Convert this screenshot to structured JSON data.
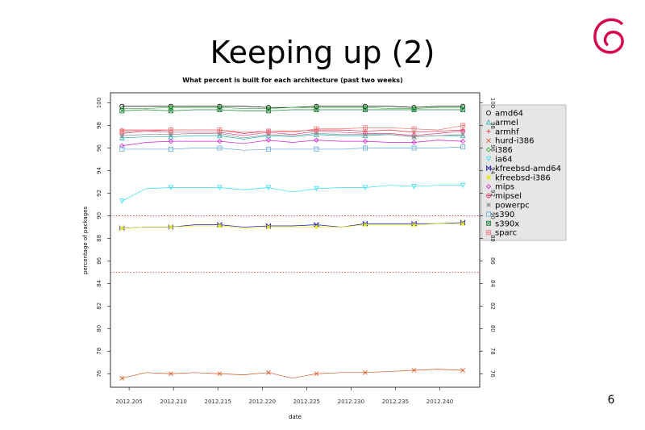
{
  "slide": {
    "title": "Keeping up (2)",
    "page_number": "6"
  },
  "chart_data": {
    "type": "line",
    "title": "What percent is built for each architecture (past two weeks)",
    "xlabel": "date",
    "ylabel": "percentage of packages",
    "x": [
      2012.2042,
      2012.2069,
      2012.2097,
      2012.2124,
      2012.2152,
      2012.2179,
      2012.2207,
      2012.2234,
      2012.2261,
      2012.2289,
      2012.2316,
      2012.2344,
      2012.2371,
      2012.2398,
      2012.2426
    ],
    "xlim": [
      2012.2029,
      2012.2445
    ],
    "xticks": [
      {
        "value": 2012.205,
        "label": "2012.205"
      },
      {
        "value": 2012.21,
        "label": "2012.210"
      },
      {
        "value": 2012.215,
        "label": "2012.215"
      },
      {
        "value": 2012.22,
        "label": "2012.220"
      },
      {
        "value": 2012.225,
        "label": "2012.225"
      },
      {
        "value": 2012.23,
        "label": "2012.230"
      },
      {
        "value": 2012.235,
        "label": "2012.235"
      },
      {
        "value": 2012.24,
        "label": "2012.240"
      }
    ],
    "ylim": [
      74.8,
      100.9
    ],
    "yticks": [
      76,
      78,
      80,
      82,
      84,
      86,
      88,
      90,
      92,
      94,
      96,
      98,
      100
    ],
    "hlines": [
      90,
      85
    ],
    "hline_color": "#e03030",
    "legend": "right",
    "series": [
      {
        "name": "amd64",
        "color": "#000000",
        "marker": "circle",
        "values": [
          99.7,
          99.7,
          99.7,
          99.7,
          99.7,
          99.7,
          99.6,
          99.6,
          99.7,
          99.7,
          99.7,
          99.7,
          99.6,
          99.7,
          99.7
        ]
      },
      {
        "name": "armel",
        "color": "#20b2aa",
        "marker": "triangle",
        "values": [
          96.9,
          97.0,
          97.0,
          97.1,
          97.1,
          96.8,
          97.1,
          97.0,
          97.2,
          97.1,
          97.1,
          97.2,
          97.0,
          97.1,
          97.1
        ]
      },
      {
        "name": "armhf",
        "color": "#e0303a",
        "marker": "plus",
        "values": [
          97.6,
          97.6,
          97.6,
          97.6,
          97.6,
          97.3,
          97.5,
          97.5,
          97.6,
          97.6,
          97.5,
          97.6,
          97.4,
          97.5,
          97.6
        ]
      },
      {
        "name": "hurd-i386",
        "color": "#d2501e",
        "marker": "x",
        "values": [
          75.6,
          76.1,
          76.0,
          76.1,
          76.0,
          75.9,
          76.1,
          75.6,
          76.0,
          76.1,
          76.1,
          76.2,
          76.3,
          76.4,
          76.3
        ]
      },
      {
        "name": "i386",
        "color": "#22b022",
        "marker": "diamond",
        "values": [
          99.5,
          99.5,
          99.6,
          99.6,
          99.6,
          99.5,
          99.5,
          99.6,
          99.6,
          99.6,
          99.6,
          99.5,
          99.5,
          99.6,
          99.6
        ]
      },
      {
        "name": "ia64",
        "color": "#30e0f0",
        "marker": "triangle-down",
        "values": [
          91.3,
          92.4,
          92.5,
          92.5,
          92.5,
          92.3,
          92.5,
          92.1,
          92.4,
          92.5,
          92.5,
          92.7,
          92.6,
          92.7,
          92.7
        ]
      },
      {
        "name": "kfreebsd-amd64",
        "color": "#1010c0",
        "marker": "bowtie",
        "values": [
          88.9,
          89.0,
          89.0,
          89.2,
          89.2,
          89.0,
          89.1,
          89.1,
          89.2,
          89.0,
          89.3,
          89.3,
          89.3,
          89.3,
          89.4
        ]
      },
      {
        "name": "kfreebsd-i386",
        "color": "#e8e800",
        "marker": "asterisk",
        "values": [
          88.9,
          89.0,
          89.0,
          89.1,
          89.1,
          88.9,
          89.0,
          89.0,
          89.0,
          89.0,
          89.2,
          89.2,
          89.2,
          89.3,
          89.3
        ]
      },
      {
        "name": "mips",
        "color": "#d020d0",
        "marker": "diamond",
        "values": [
          96.2,
          96.5,
          96.6,
          96.6,
          96.6,
          96.4,
          96.7,
          96.5,
          96.7,
          96.6,
          96.6,
          96.5,
          96.5,
          96.7,
          96.6
        ]
      },
      {
        "name": "mipsel",
        "color": "#e04080",
        "marker": "circle-plus",
        "values": [
          97.3,
          97.5,
          97.4,
          97.4,
          97.4,
          97.1,
          97.4,
          97.2,
          97.5,
          97.4,
          97.3,
          97.3,
          97.1,
          97.3,
          97.5
        ]
      },
      {
        "name": "powerpc",
        "color": "#909090",
        "marker": "star",
        "values": [
          97.1,
          97.2,
          97.2,
          97.3,
          97.3,
          96.9,
          97.2,
          97.1,
          97.3,
          97.2,
          97.2,
          97.2,
          97.0,
          97.1,
          97.2
        ]
      },
      {
        "name": "s390",
        "color": "#60a8e0",
        "marker": "square",
        "values": [
          95.9,
          95.9,
          95.9,
          96.0,
          96.0,
          95.8,
          95.9,
          95.9,
          95.9,
          95.9,
          96.0,
          96.0,
          96.0,
          96.0,
          96.1
        ]
      },
      {
        "name": "s390x",
        "color": "#208040",
        "marker": "square-x",
        "values": [
          99.3,
          99.4,
          99.3,
          99.4,
          99.4,
          99.3,
          99.3,
          99.4,
          99.4,
          99.4,
          99.4,
          99.4,
          99.4,
          99.4,
          99.4
        ]
      },
      {
        "name": "sparc",
        "color": "#f07878",
        "marker": "square-plus",
        "values": [
          97.5,
          97.5,
          97.6,
          97.6,
          97.6,
          97.4,
          97.5,
          97.4,
          97.7,
          97.7,
          97.8,
          97.8,
          97.7,
          97.6,
          98.0
        ]
      }
    ]
  }
}
